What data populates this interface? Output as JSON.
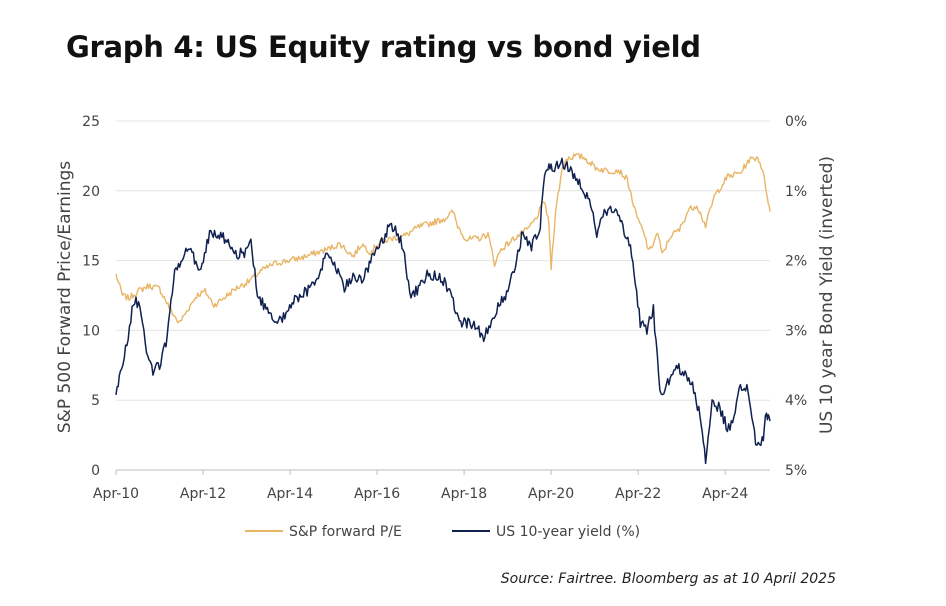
{
  "title": "Graph 4: US Equity rating vs bond yield",
  "source": "Source: Fairtree. Bloomberg as at 10 April 2025",
  "chart_data": {
    "type": "line",
    "ylabel": "S&P 500 Forward Price/Earnings",
    "y2label": "US 10 year Bond Yield (inverted)",
    "xlabel": "",
    "ylim": [
      0,
      25
    ],
    "y2lim": [
      0,
      5
    ],
    "y2_inverted": true,
    "yticks": [
      "0",
      "5",
      "10",
      "15",
      "20",
      "25"
    ],
    "y2ticks": [
      "0%",
      "1%",
      "2%",
      "3%",
      "4%",
      "5%"
    ],
    "xticks": [
      "Apr-10",
      "Apr-12",
      "Apr-14",
      "Apr-16",
      "Apr-18",
      "Apr-20",
      "Apr-22",
      "Apr-24"
    ],
    "xtick_years": [
      2010.25,
      2012.25,
      2014.25,
      2016.25,
      2018.25,
      2020.25,
      2022.25,
      2024.25
    ],
    "xlim": [
      2010.25,
      2025.28
    ],
    "grid": true,
    "legend_position": "bottom",
    "colors": {
      "pe": "#E9B566",
      "yield": "#10204F",
      "grid": "#E4E4E4"
    },
    "series": [
      {
        "name": "S&P forward P/E",
        "axis": "left",
        "x": [
          2010.25,
          2010.4,
          2010.55,
          2010.75,
          2011.0,
          2011.25,
          2011.5,
          2011.7,
          2011.9,
          2012.1,
          2012.3,
          2012.5,
          2012.8,
          2013.0,
          2013.3,
          2013.6,
          2013.9,
          2014.2,
          2014.5,
          2014.8,
          2015.1,
          2015.4,
          2015.7,
          2015.9,
          2016.1,
          2016.3,
          2016.6,
          2016.9,
          2017.2,
          2017.5,
          2017.8,
          2018.0,
          2018.1,
          2018.3,
          2018.6,
          2018.8,
          2018.95,
          2019.1,
          2019.4,
          2019.7,
          2019.9,
          2020.1,
          2020.2,
          2020.25,
          2020.35,
          2020.5,
          2020.6,
          2020.8,
          2021.0,
          2021.3,
          2021.6,
          2021.8,
          2022.0,
          2022.2,
          2022.4,
          2022.5,
          2022.7,
          2022.8,
          2023.0,
          2023.2,
          2023.4,
          2023.6,
          2023.8,
          2024.0,
          2024.3,
          2024.6,
          2024.8,
          2025.0,
          2025.1,
          2025.2,
          2025.28
        ],
        "values": [
          14.0,
          12.5,
          12.3,
          12.8,
          13.2,
          13.0,
          11.5,
          10.5,
          11.5,
          12.5,
          12.8,
          11.8,
          12.5,
          13.0,
          13.5,
          14.3,
          14.8,
          15.0,
          15.2,
          15.5,
          15.8,
          16.2,
          15.3,
          16.2,
          15.6,
          16.3,
          16.6,
          16.8,
          17.4,
          17.7,
          18.0,
          18.5,
          17.5,
          16.5,
          16.6,
          16.9,
          14.8,
          15.8,
          16.6,
          17.2,
          18.0,
          19.3,
          17.5,
          14.5,
          18.5,
          21.5,
          22.3,
          22.5,
          22.4,
          21.6,
          21.4,
          21.5,
          20.8,
          18.3,
          16.8,
          15.6,
          17.0,
          15.4,
          16.8,
          17.2,
          18.6,
          19.0,
          17.5,
          19.6,
          21.0,
          21.3,
          22.2,
          22.4,
          21.6,
          20.0,
          18.5
        ]
      },
      {
        "name": "US 10-year yield (%)",
        "axis": "right",
        "x": [
          2010.25,
          2010.35,
          2010.5,
          2010.65,
          2010.8,
          2010.95,
          2011.1,
          2011.25,
          2011.4,
          2011.6,
          2011.8,
          2012.0,
          2012.2,
          2012.4,
          2012.6,
          2012.8,
          2013.0,
          2013.2,
          2013.35,
          2013.5,
          2013.7,
          2013.9,
          2014.1,
          2014.3,
          2014.5,
          2014.7,
          2014.9,
          2015.1,
          2015.3,
          2015.5,
          2015.7,
          2015.9,
          2016.1,
          2016.3,
          2016.55,
          2016.7,
          2016.85,
          2017.0,
          2017.2,
          2017.4,
          2017.6,
          2017.8,
          2018.0,
          2018.2,
          2018.45,
          2018.7,
          2018.85,
          2019.0,
          2019.2,
          2019.4,
          2019.6,
          2019.8,
          2020.0,
          2020.1,
          2020.2,
          2020.3,
          2020.5,
          2020.7,
          2020.9,
          2021.1,
          2021.3,
          2021.5,
          2021.7,
          2021.9,
          2022.1,
          2022.3,
          2022.45,
          2022.6,
          2022.75,
          2022.9,
          2023.1,
          2023.3,
          2023.5,
          2023.7,
          2023.8,
          2023.95,
          2024.1,
          2024.3,
          2024.45,
          2024.6,
          2024.75,
          2024.95,
          2025.1,
          2025.2,
          2025.28
        ],
        "values": [
          3.9,
          3.6,
          3.2,
          2.6,
          2.6,
          3.3,
          3.6,
          3.5,
          3.2,
          2.2,
          1.9,
          1.9,
          2.2,
          1.6,
          1.6,
          1.7,
          1.9,
          1.9,
          1.7,
          2.5,
          2.7,
          2.9,
          2.8,
          2.6,
          2.5,
          2.4,
          2.2,
          1.9,
          2.1,
          2.4,
          2.2,
          2.3,
          2.0,
          1.8,
          1.5,
          1.6,
          1.8,
          2.5,
          2.4,
          2.2,
          2.2,
          2.3,
          2.6,
          2.9,
          2.9,
          3.1,
          2.9,
          2.7,
          2.5,
          2.1,
          1.6,
          1.8,
          1.5,
          0.7,
          0.6,
          0.7,
          0.6,
          0.7,
          0.9,
          1.1,
          1.6,
          1.3,
          1.3,
          1.5,
          1.9,
          2.9,
          3.0,
          2.7,
          3.9,
          3.8,
          3.5,
          3.6,
          3.8,
          4.3,
          4.9,
          4.0,
          4.1,
          4.4,
          4.3,
          3.8,
          3.8,
          4.6,
          4.6,
          4.2,
          4.3
        ]
      }
    ]
  }
}
